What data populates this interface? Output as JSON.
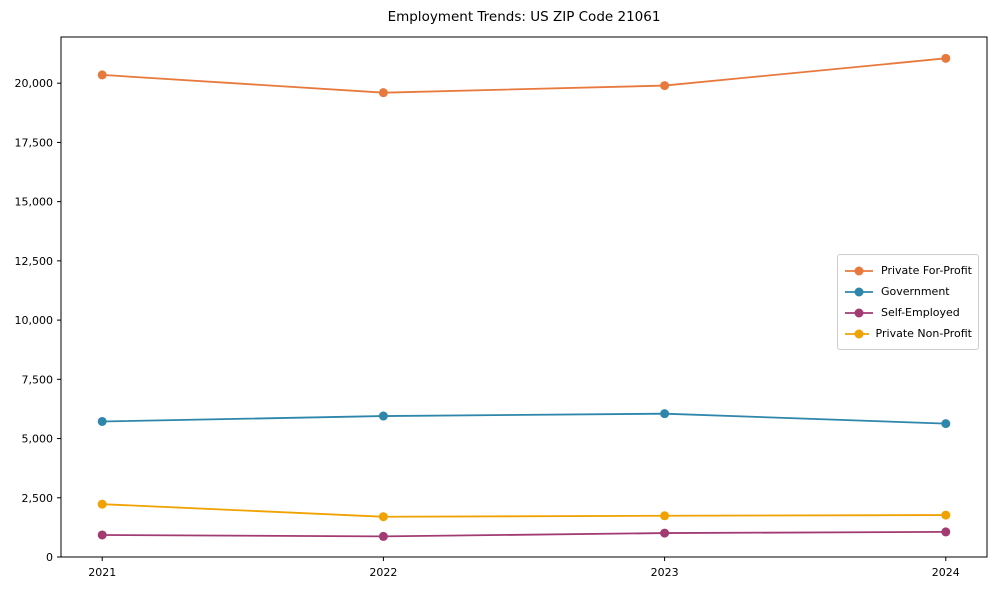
{
  "chart_data": {
    "type": "line",
    "title": "Employment Trends: US ZIP Code 21061",
    "x": [
      2021,
      2022,
      2023,
      2024
    ],
    "x_tick_labels": [
      "2021",
      "2022",
      "2023",
      "2024"
    ],
    "series": [
      {
        "name": "Private For-Profit",
        "color": "#E8793D",
        "values": [
          20350,
          19600,
          19900,
          21050
        ]
      },
      {
        "name": "Government",
        "color": "#2E86AB",
        "values": [
          5720,
          5950,
          6050,
          5630
        ]
      },
      {
        "name": "Self-Employed",
        "color": "#A23B72",
        "values": [
          930,
          870,
          1010,
          1060
        ]
      },
      {
        "name": "Private Non-Profit",
        "color": "#F0A202",
        "values": [
          2230,
          1700,
          1740,
          1770
        ]
      }
    ],
    "ylim": [
      0,
      21950
    ],
    "yticks": [
      0,
      2500,
      5000,
      7500,
      10000,
      12500,
      15000,
      17500,
      20000
    ],
    "ytick_labels": [
      "0",
      "2,500",
      "5,000",
      "7,500",
      "10,000",
      "12,500",
      "15,000",
      "17,500",
      "20,000"
    ],
    "xlabel": "",
    "ylabel": "",
    "grid": false,
    "legend_position": "middle-right",
    "marker": "circle",
    "axis_color": "#000000",
    "legend_border_color": "#cccccc"
  }
}
